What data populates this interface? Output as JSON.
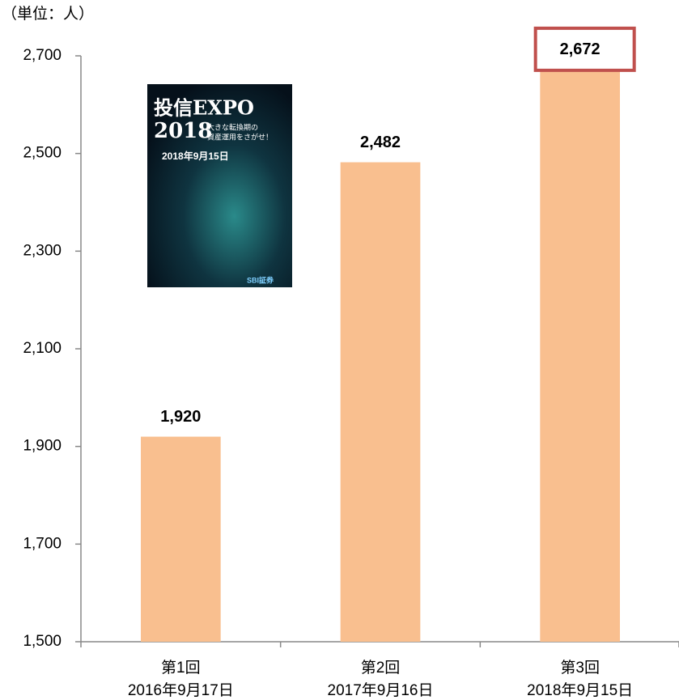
{
  "chart_data": {
    "type": "bar",
    "y_label": "（単位：人）",
    "categories": [
      [
        "第1回",
        "2016年9月17日"
      ],
      [
        "第2回",
        "2017年9月16日"
      ],
      [
        "第3回",
        "2018年9月15日"
      ]
    ],
    "values": [
      1920,
      2482,
      2672
    ],
    "value_labels": [
      "1,920",
      "2,482",
      "2,672"
    ],
    "color": "#f9bf8f",
    "ylim": [
      1500,
      2700
    ],
    "yticks": [
      {
        "value": 1500,
        "label": "1,500"
      },
      {
        "value": 1700,
        "label": "1,700"
      },
      {
        "value": 1900,
        "label": "1,900"
      },
      {
        "value": 2100,
        "label": "2,100"
      },
      {
        "value": 2300,
        "label": "2,300"
      },
      {
        "value": 2500,
        "label": "2,500"
      },
      {
        "value": 2700,
        "label": "2,700"
      }
    ],
    "grid": false,
    "highlight_index": 2,
    "highlight_color": "#c0504d",
    "poster": {
      "title": "投信EXPO",
      "year": "2018",
      "subtitle": [
        "大きな転換期の",
        "資産運用をさがせ！"
      ],
      "date": "2018年9月15日",
      "sponsor": "SBI証券"
    }
  }
}
